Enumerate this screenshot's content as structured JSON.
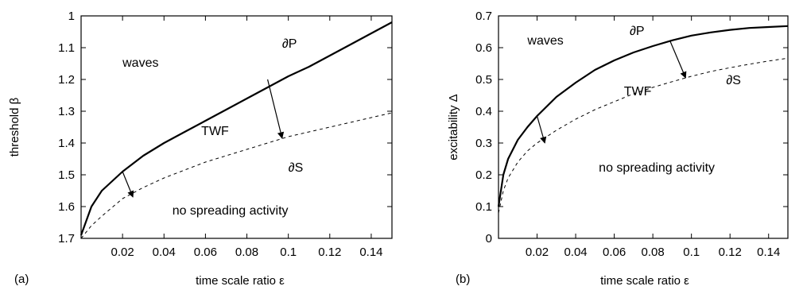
{
  "chart_data": [
    {
      "type": "line",
      "panel_label": "(a)",
      "xlabel": "time scale ratio ε",
      "ylabel": "threshold β",
      "xlim": [
        0,
        0.15
      ],
      "ylim": [
        1.7,
        1.0
      ],
      "y_inverted": true,
      "x_ticks": [
        0.02,
        0.04,
        0.06,
        0.08,
        0.1,
        0.12,
        0.14
      ],
      "x_tick_labels": [
        "0.02",
        "0.04",
        "0.06",
        "0.08",
        "0.1",
        "0.12",
        "0.14"
      ],
      "y_ticks": [
        1,
        1.1,
        1.2,
        1.3,
        1.4,
        1.5,
        1.6,
        1.7
      ],
      "y_tick_labels": [
        "1",
        "1.1",
        "1.2",
        "1.3",
        "1.4",
        "1.5",
        "1.6",
        "1.7"
      ],
      "grid": false,
      "series": [
        {
          "name": "∂P",
          "style": "solid",
          "x": [
            0.0,
            0.005,
            0.01,
            0.02,
            0.03,
            0.04,
            0.05,
            0.06,
            0.07,
            0.08,
            0.09,
            0.1,
            0.11,
            0.12,
            0.13,
            0.14,
            0.15
          ],
          "y": [
            1.69,
            1.6,
            1.55,
            1.49,
            1.44,
            1.4,
            1.365,
            1.33,
            1.295,
            1.26,
            1.225,
            1.19,
            1.16,
            1.125,
            1.09,
            1.055,
            1.02
          ]
        },
        {
          "name": "∂S",
          "style": "dashed",
          "x": [
            0.0,
            0.005,
            0.01,
            0.02,
            0.03,
            0.04,
            0.05,
            0.06,
            0.07,
            0.08,
            0.09,
            0.1,
            0.11,
            0.12,
            0.13,
            0.14,
            0.15
          ],
          "y": [
            1.7,
            1.66,
            1.63,
            1.575,
            1.54,
            1.51,
            1.485,
            1.46,
            1.44,
            1.42,
            1.4,
            1.38,
            1.365,
            1.35,
            1.335,
            1.32,
            1.305
          ]
        }
      ],
      "arrows": [
        {
          "from": [
            0.02,
            1.49
          ],
          "to": [
            0.025,
            1.57
          ]
        },
        {
          "from": [
            0.09,
            1.2
          ],
          "to": [
            0.097,
            1.385
          ]
        }
      ],
      "annotations": [
        {
          "text": "waves",
          "x": 0.02,
          "y": 1.16
        },
        {
          "text": "∂P",
          "x": 0.097,
          "y": 1.1
        },
        {
          "text": "TWF",
          "x": 0.058,
          "y": 1.375
        },
        {
          "text": "∂S",
          "x": 0.1,
          "y": 1.49
        },
        {
          "text": "no spreading activity",
          "x": 0.044,
          "y": 1.625
        }
      ]
    },
    {
      "type": "line",
      "panel_label": "(b)",
      "xlabel": "time scale ratio ε",
      "ylabel": "excitability Δ",
      "xlim": [
        0,
        0.15
      ],
      "ylim": [
        0,
        0.7
      ],
      "x_ticks": [
        0.02,
        0.04,
        0.06,
        0.08,
        0.1,
        0.12,
        0.14
      ],
      "x_tick_labels": [
        "0.02",
        "0.04",
        "0.06",
        "0.08",
        "0.1",
        "0.12",
        "0.14"
      ],
      "y_ticks": [
        0,
        0.1,
        0.2,
        0.3,
        0.4,
        0.5,
        0.6,
        0.7
      ],
      "y_tick_labels": [
        "0",
        "0.1",
        "0.2",
        "0.3",
        "0.4",
        "0.5",
        "0.6",
        "0.7"
      ],
      "grid": false,
      "series": [
        {
          "name": "∂P",
          "style": "solid",
          "x": [
            0.0,
            0.0025,
            0.005,
            0.01,
            0.015,
            0.02,
            0.03,
            0.04,
            0.05,
            0.06,
            0.07,
            0.08,
            0.09,
            0.1,
            0.11,
            0.12,
            0.13,
            0.14,
            0.15
          ],
          "y": [
            0.1,
            0.2,
            0.25,
            0.31,
            0.35,
            0.385,
            0.445,
            0.49,
            0.53,
            0.56,
            0.585,
            0.605,
            0.623,
            0.638,
            0.648,
            0.656,
            0.662,
            0.665,
            0.668
          ]
        },
        {
          "name": "∂S",
          "style": "dashed",
          "x": [
            0.0,
            0.0025,
            0.005,
            0.01,
            0.015,
            0.02,
            0.03,
            0.04,
            0.05,
            0.06,
            0.07,
            0.08,
            0.09,
            0.1,
            0.11,
            0.12,
            0.13,
            0.14,
            0.15
          ],
          "y": [
            0.08,
            0.15,
            0.19,
            0.24,
            0.275,
            0.3,
            0.34,
            0.375,
            0.405,
            0.43,
            0.455,
            0.475,
            0.493,
            0.51,
            0.525,
            0.537,
            0.548,
            0.558,
            0.567
          ]
        }
      ],
      "arrows": [
        {
          "from": [
            0.02,
            0.385
          ],
          "to": [
            0.024,
            0.3
          ]
        },
        {
          "from": [
            0.089,
            0.62
          ],
          "to": [
            0.097,
            0.505
          ]
        }
      ],
      "annotations": [
        {
          "text": "waves",
          "x": 0.015,
          "y": 0.61
        },
        {
          "text": "∂P",
          "x": 0.068,
          "y": 0.64
        },
        {
          "text": "TWF",
          "x": 0.065,
          "y": 0.45
        },
        {
          "text": "∂S",
          "x": 0.118,
          "y": 0.485
        },
        {
          "text": "no spreading activity",
          "x": 0.052,
          "y": 0.21
        }
      ]
    }
  ]
}
